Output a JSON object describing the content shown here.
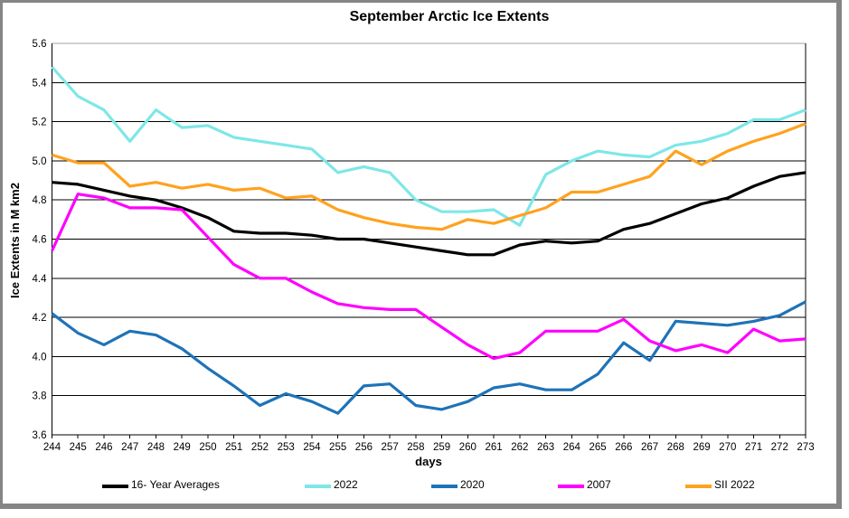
{
  "window": {
    "background": "#ffffff",
    "frame_border_color": "#858585"
  },
  "chart_data": {
    "type": "line",
    "title": "September Arctic Ice Extents",
    "xlabel": "days",
    "ylabel": "Ice Extents in M km2",
    "legend_position": "bottom",
    "grid": "horizontal",
    "ylim": [
      3.6,
      5.6
    ],
    "yticks": [
      "5.6",
      "5.4",
      "5.2",
      "5.0",
      "4.8",
      "4.6",
      "4.4",
      "4.2",
      "4.0",
      "3.8",
      "3.6"
    ],
    "x": [
      244,
      245,
      246,
      247,
      248,
      249,
      250,
      251,
      252,
      253,
      254,
      255,
      256,
      257,
      258,
      259,
      260,
      261,
      262,
      263,
      264,
      265,
      266,
      267,
      268,
      269,
      270,
      271,
      272,
      273
    ],
    "series": [
      {
        "name": "16- Year Averages",
        "color": "#000000",
        "values": [
          4.89,
          4.88,
          4.85,
          4.82,
          4.8,
          4.76,
          4.71,
          4.64,
          4.63,
          4.63,
          4.62,
          4.6,
          4.6,
          4.58,
          4.56,
          4.54,
          4.52,
          4.52,
          4.57,
          4.59,
          4.58,
          4.59,
          4.65,
          4.68,
          4.73,
          4.78,
          4.81,
          4.87,
          4.92,
          4.94
        ]
      },
      {
        "name": "2022",
        "color": "#7EE7E7",
        "values": [
          5.48,
          5.33,
          5.26,
          5.1,
          5.26,
          5.17,
          5.18,
          5.12,
          5.1,
          5.08,
          5.06,
          4.94,
          4.97,
          4.94,
          4.8,
          4.74,
          4.74,
          4.75,
          4.67,
          4.93,
          5.0,
          5.05,
          5.03,
          5.02,
          5.08,
          5.1,
          5.14,
          5.21,
          5.21,
          5.26
        ]
      },
      {
        "name": "2020",
        "color": "#1E73B8",
        "values": [
          4.22,
          4.12,
          4.06,
          4.13,
          4.11,
          4.04,
          3.94,
          3.85,
          3.75,
          3.81,
          3.77,
          3.71,
          3.85,
          3.86,
          3.75,
          3.73,
          3.77,
          3.84,
          3.86,
          3.83,
          3.83,
          3.91,
          4.07,
          3.98,
          4.18,
          4.17,
          4.16,
          4.18,
          4.21,
          4.28
        ]
      },
      {
        "name": "2007",
        "color": "#FF00FF",
        "values": [
          4.54,
          4.83,
          4.81,
          4.76,
          4.76,
          4.75,
          4.61,
          4.47,
          4.4,
          4.4,
          4.33,
          4.27,
          4.25,
          4.24,
          4.24,
          4.15,
          4.06,
          3.99,
          4.02,
          4.13,
          4.13,
          4.13,
          4.19,
          4.08,
          4.03,
          4.06,
          4.02,
          4.14,
          4.08,
          4.09
        ]
      },
      {
        "name": "SII 2022",
        "color": "#FFA21E",
        "values": [
          5.03,
          4.99,
          4.99,
          4.87,
          4.89,
          4.86,
          4.88,
          4.85,
          4.86,
          4.81,
          4.82,
          4.75,
          4.71,
          4.68,
          4.66,
          4.65,
          4.7,
          4.68,
          4.72,
          4.76,
          4.84,
          4.84,
          4.88,
          4.92,
          5.05,
          4.98,
          5.05,
          5.1,
          5.14,
          5.19
        ]
      }
    ]
  }
}
